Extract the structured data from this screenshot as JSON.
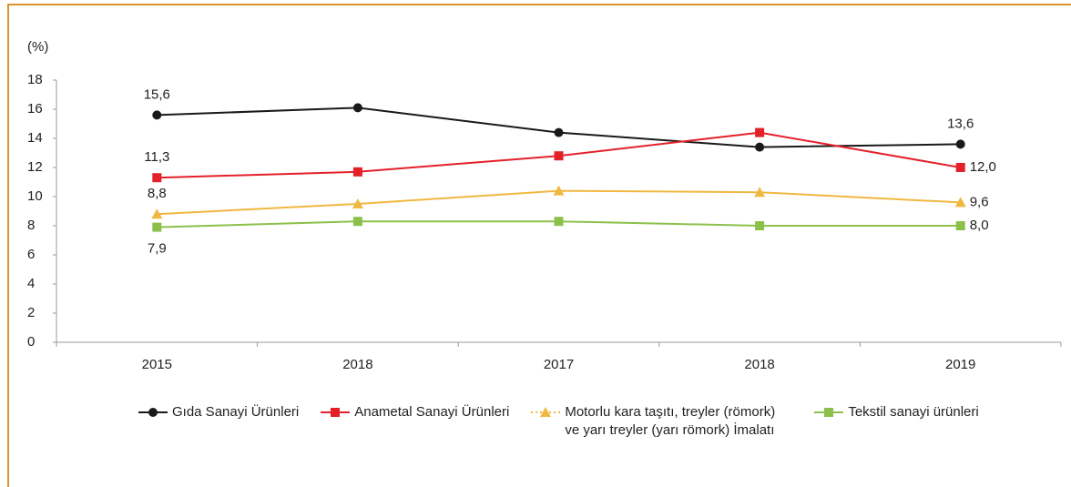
{
  "chart_data": {
    "type": "line",
    "y_label": "(%)",
    "categories": [
      "2015",
      "2018",
      "2017",
      "2018",
      "2019"
    ],
    "ylim": [
      0,
      18
    ],
    "yticks": [
      0,
      2,
      4,
      6,
      8,
      10,
      12,
      14,
      16,
      18
    ],
    "series": [
      {
        "name": "Gıda Sanayi Ürünleri",
        "color": "#1a1a1a",
        "marker": "circle",
        "values": [
          15.6,
          16.1,
          14.4,
          13.4,
          13.6
        ],
        "value_labels": [
          "15,6",
          null,
          null,
          null,
          "13,6"
        ]
      },
      {
        "name": "Anametal Sanayi Ürünleri",
        "color": "#e32129",
        "marker": "square",
        "values": [
          11.3,
          11.7,
          12.8,
          14.4,
          12.0
        ],
        "value_labels": [
          "11,3",
          null,
          null,
          null,
          "12,0"
        ]
      },
      {
        "name": "Motorlu kara taşıtı, treyler (römork) ve yarı treyler (yarı römork) İmalatı",
        "color": "#f0b841",
        "marker": "triangle",
        "values": [
          8.8,
          9.5,
          10.4,
          10.3,
          9.6
        ],
        "value_labels": [
          "8,8",
          null,
          null,
          null,
          "9,6"
        ]
      },
      {
        "name": "Tekstil sanayi ürünleri",
        "color": "#8cc04b",
        "marker": "square",
        "values": [
          7.9,
          8.3,
          8.3,
          8.0,
          8.0
        ],
        "value_labels": [
          "7,9",
          null,
          null,
          null,
          "8,0"
        ]
      }
    ]
  }
}
